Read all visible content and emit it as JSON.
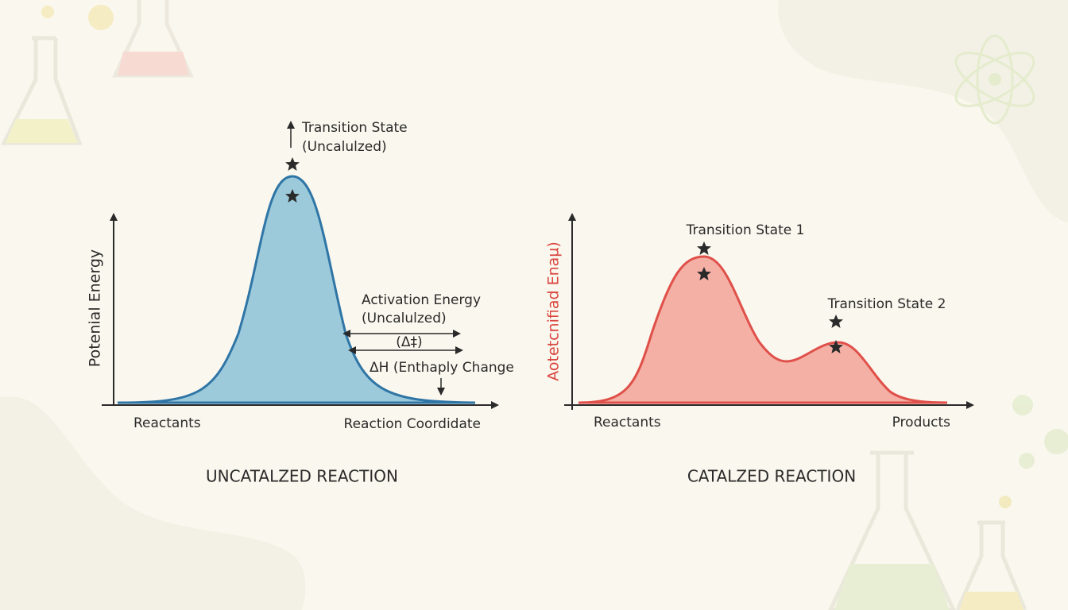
{
  "left": {
    "y_label": "Potenial Energy",
    "transition_state": "Transition State",
    "transition_state_note": "(Uncalulzed)",
    "activation_energy": "Activation Energy",
    "activation_energy_note": "(Uncalulzed)",
    "delta_label": "(Δ‡)",
    "enthalpy": "ΔH (Enthaply Change",
    "start": "Reactants",
    "x_label": "Reaction Coordidate",
    "title": "UNCATALZED REACTION"
  },
  "right": {
    "y_label": "Aotetcnifiad Enaµ)",
    "transition_state_1": "Transition State 1",
    "transition_state_2": "Transition State 2",
    "start": "Reactants",
    "end": "Products",
    "title": "CATALZED REACTION"
  }
}
